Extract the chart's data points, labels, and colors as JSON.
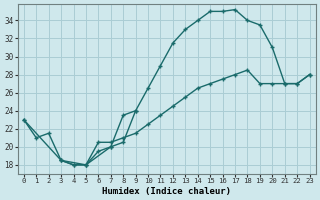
{
  "xlabel": "Humidex (Indice chaleur)",
  "bg_color": "#cfe8ec",
  "grid_color": "#aacdd4",
  "line_color": "#1a6b6b",
  "xlim": [
    -0.5,
    23.5
  ],
  "ylim": [
    17.0,
    35.8
  ],
  "xticks": [
    0,
    1,
    2,
    3,
    4,
    5,
    6,
    7,
    8,
    9,
    10,
    11,
    12,
    13,
    14,
    15,
    16,
    17,
    18,
    19,
    20,
    21,
    22,
    23
  ],
  "yticks": [
    18,
    20,
    22,
    24,
    26,
    28,
    30,
    32,
    34
  ],
  "line1_x": [
    0,
    1,
    2,
    3,
    4,
    5,
    6,
    7,
    8,
    9,
    10,
    11,
    12,
    13,
    14,
    15,
    16,
    17,
    18,
    19,
    20,
    21,
    22,
    23
  ],
  "line1_y": [
    23.0,
    21.0,
    21.5,
    18.5,
    18.0,
    18.0,
    19.5,
    20.0,
    20.5,
    24.0,
    26.5,
    29.0,
    31.5,
    33.0,
    34.0,
    35.0,
    35.0,
    35.2,
    34.0,
    33.5,
    31.0,
    27.0,
    27.0,
    28.0
  ],
  "line2_x": [
    0,
    3,
    4,
    5,
    6,
    7,
    8,
    9,
    10,
    11,
    12,
    13,
    14,
    15,
    16,
    17,
    18,
    19,
    20,
    21,
    22,
    23
  ],
  "line2_y": [
    23.0,
    18.5,
    18.0,
    18.0,
    20.5,
    20.5,
    21.0,
    21.5,
    22.5,
    23.5,
    24.5,
    25.5,
    26.5,
    27.0,
    27.5,
    28.0,
    28.5,
    27.0,
    27.0,
    27.0,
    27.0,
    28.0
  ],
  "line3_x": [
    3,
    5,
    7,
    8,
    9
  ],
  "line3_y": [
    18.5,
    18.0,
    20.0,
    23.5,
    24.0
  ]
}
